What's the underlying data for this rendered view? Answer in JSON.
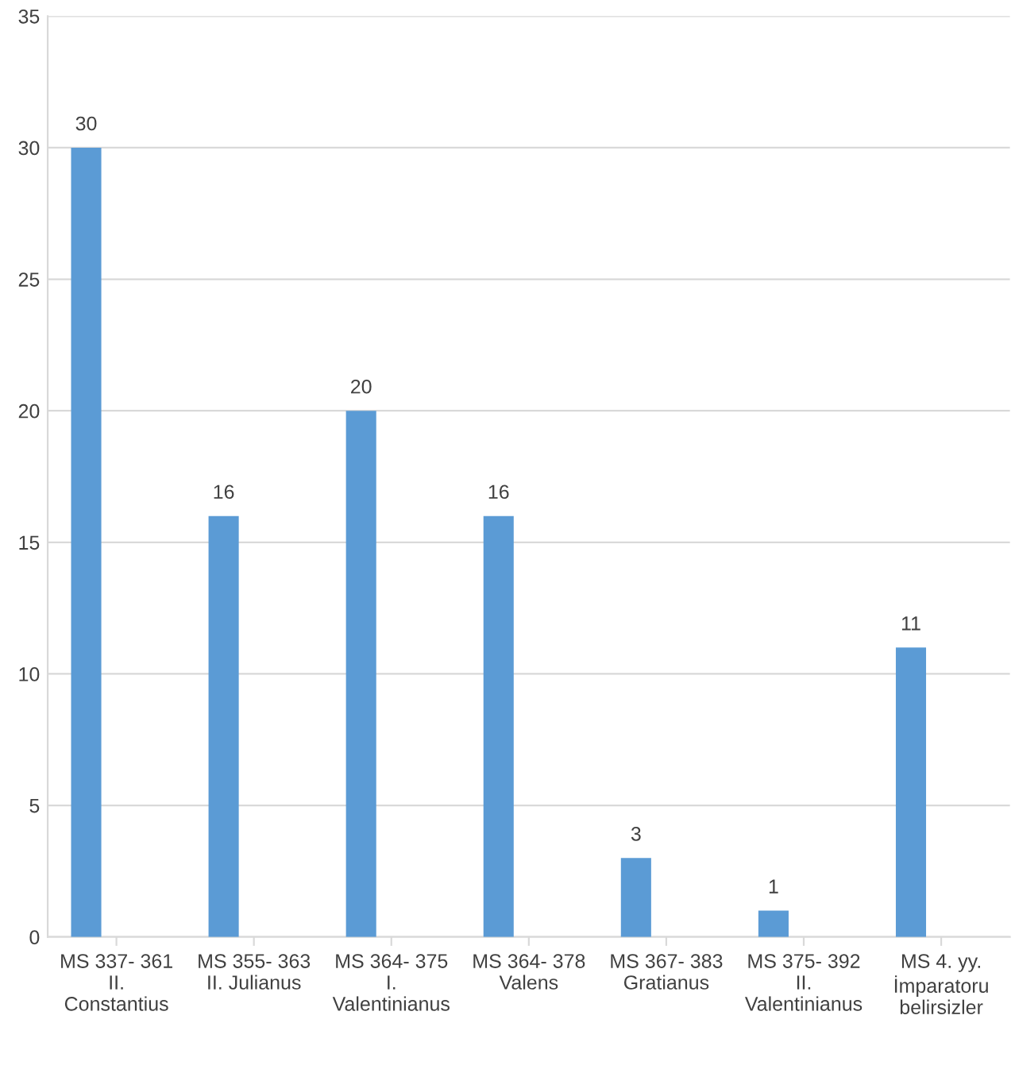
{
  "chart_data": {
    "type": "bar",
    "categories": [
      "MS 337- 361\nII.\nConstantius",
      "MS 355- 363\nII. Julianus",
      "MS 364- 375\nI.\nValentinianus",
      "MS 364- 378\nValens",
      "MS 367- 383\nGratianus",
      "MS 375- 392\nII.\nValentinianus",
      "MS 4. yy.\nİmparatoru\nbelirsizler"
    ],
    "values": [
      30,
      16,
      20,
      16,
      3,
      1,
      11
    ],
    "color": "#5b9bd5",
    "ylim": [
      0,
      35
    ],
    "yticks": [
      0,
      5,
      10,
      15,
      20,
      25,
      30,
      35
    ],
    "grid": "y",
    "data_labels": true,
    "legend": false
  }
}
